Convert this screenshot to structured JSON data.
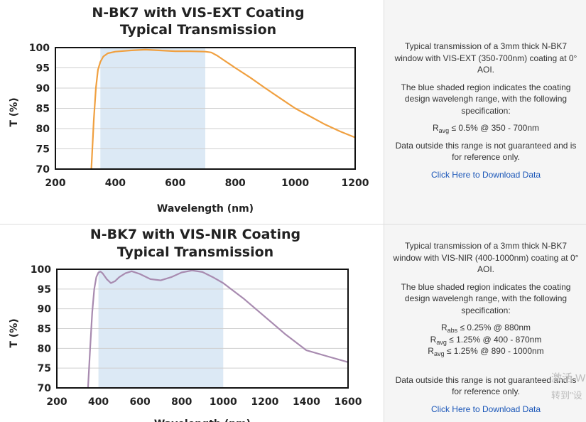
{
  "chart_data": [
    {
      "type": "line",
      "title_line1": "N-BK7 with VIS-EXT Coating",
      "title_line2": "Typical Transmission",
      "xlabel": "Wavelength (nm)",
      "ylabel": "T (%)",
      "xlim": [
        200,
        1200
      ],
      "ylim": [
        70,
        100
      ],
      "x_ticks": [
        200,
        400,
        600,
        800,
        1000,
        1200
      ],
      "y_ticks": [
        70,
        75,
        80,
        85,
        90,
        95,
        100
      ],
      "shaded_range": [
        350,
        700
      ],
      "grid": true,
      "line_color": "#f0a040",
      "shade_color": "#dce9f5",
      "series": [
        {
          "x": [
            320,
            328,
            335,
            342,
            350,
            360,
            375,
            400,
            450,
            500,
            550,
            600,
            650,
            700,
            720,
            740,
            760,
            780,
            800,
            850,
            900,
            950,
            1000,
            1050,
            1100,
            1150,
            1200
          ],
          "values": [
            70,
            82,
            90,
            94.5,
            96.5,
            97.8,
            98.6,
            99.0,
            99.3,
            99.5,
            99.3,
            99.1,
            99.1,
            99.0,
            98.8,
            98.0,
            97.0,
            96.0,
            95.0,
            92.6,
            90.0,
            87.5,
            85.0,
            83.0,
            81.0,
            79.3,
            77.8
          ]
        }
      ]
    },
    {
      "type": "line",
      "title_line1": "N-BK7 with VIS-NIR Coating",
      "title_line2": "Typical Transmission",
      "xlabel": "Wavelength (nm)",
      "ylabel": "T (%)",
      "xlim": [
        200,
        1600
      ],
      "ylim": [
        70,
        100
      ],
      "x_ticks": [
        200,
        400,
        600,
        800,
        1000,
        1200,
        1400,
        1600
      ],
      "y_ticks": [
        70,
        75,
        80,
        85,
        90,
        95,
        100
      ],
      "shaded_range": [
        400,
        1000
      ],
      "grid": true,
      "line_color": "#a88bb0",
      "shade_color": "#dce9f5",
      "series": [
        {
          "x": [
            350,
            360,
            370,
            380,
            390,
            400,
            410,
            420,
            440,
            460,
            480,
            500,
            530,
            560,
            600,
            650,
            700,
            750,
            800,
            850,
            900,
            950,
            1000,
            1050,
            1100,
            1200,
            1300,
            1400,
            1500,
            1600
          ],
          "values": [
            70,
            80,
            89,
            95,
            98,
            99.2,
            99.4,
            99.0,
            97.5,
            96.5,
            97.0,
            98.0,
            99.0,
            99.5,
            98.8,
            97.5,
            97.2,
            98.0,
            99.2,
            99.7,
            99.3,
            98.0,
            96.5,
            94.5,
            92.5,
            88.0,
            83.5,
            79.5,
            78.0,
            76.5
          ]
        }
      ]
    }
  ],
  "panels": [
    {
      "desc1": "Typical transmission of a 3mm thick N-BK7 window with VIS-EXT (350-700nm) coating at 0° AOI.",
      "desc2": "The blue shaded region indicates the coating design wavelengh range, with the following specification:",
      "specs": [
        {
          "symbol": "R",
          "sub": "avg",
          "text": "≤ 0.5% @ 350 - 700nm"
        }
      ],
      "desc3": "Data outside this range is not guaranteed and is for reference only.",
      "link": "Click Here to Download Data"
    },
    {
      "desc1": "Typical transmission of a 3mm thick N-BK7 window with VIS-NIR (400-1000nm) coating at 0° AOI.",
      "desc2": "The blue shaded region indicates the coating design wavelengh range, with the following specification:",
      "specs": [
        {
          "symbol": "R",
          "sub": "abs",
          "text": "≤ 0.25% @ 880nm"
        },
        {
          "symbol": "R",
          "sub": "avg",
          "text": "≤ 1.25% @ 400 - 870nm"
        },
        {
          "symbol": "R",
          "sub": "avg",
          "text": "≤ 1.25% @ 890 - 1000nm"
        }
      ],
      "desc3": "Data outside this range is not guaranteed and is for reference only.",
      "link": "Click Here to Download Data"
    }
  ],
  "watermark": {
    "line1": "激活 W",
    "line2": "转到\"设"
  }
}
